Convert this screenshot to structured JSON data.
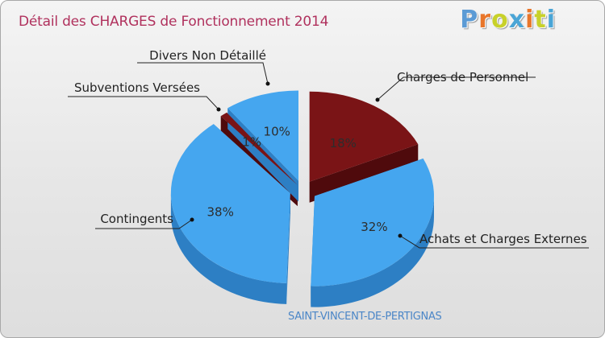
{
  "header": {
    "title": "Détail des CHARGES de Fonctionnement 2014",
    "logo": "Proxiti",
    "logo_colors": [
      "#5c9bd5",
      "#e8762b",
      "#c8d12a",
      "#4aa5d6",
      "#e8762b",
      "#c8d12a",
      "#4aa5d6"
    ]
  },
  "footer": {
    "commune": "SAINT-VINCENT-DE-PERTIGNAS"
  },
  "chart_data": {
    "type": "pie",
    "title": "Détail des CHARGES de Fonctionnement 2014",
    "style": "3d-exploded",
    "slices": [
      {
        "label": "Charges de Personnel",
        "value": 18,
        "display": "18%",
        "color": "#7a1416",
        "side": "#4f0a0c"
      },
      {
        "label": "Achats et Charges Externes",
        "value": 32,
        "display": "32%",
        "color": "#45a6ef",
        "side": "#2d7fc4"
      },
      {
        "label": "Contingents",
        "value": 38,
        "display": "38%",
        "color": "#45a6ef",
        "side": "#2d7fc4"
      },
      {
        "label": "Subventions Versées",
        "value": 1,
        "display": "1%",
        "color": "#7a1416",
        "side": "#4f0a0c"
      },
      {
        "label": "Divers Non Détaillé",
        "value": 10,
        "display": "10%",
        "color": "#45a6ef",
        "side": "#2d7fc4"
      }
    ]
  }
}
